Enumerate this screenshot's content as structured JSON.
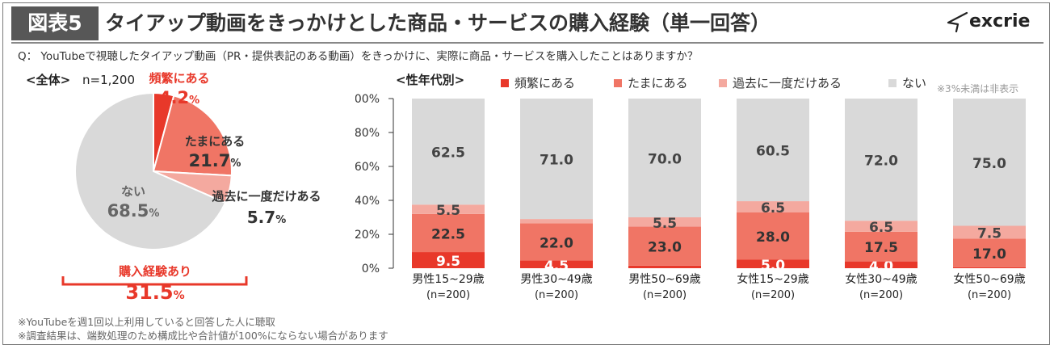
{
  "header": {
    "figure_badge": "図表5",
    "title": "タイアップ動画をきっかけとした商品・サービスの購入経験（単一回答）",
    "logo_text": "excrie"
  },
  "question": "Q： YouTubeで視聴したタイアップ動画（PR・提供表記のある動画）をきっかけに、実際に商品・サービスを購入したことはありますか？",
  "footnotes": [
    "※YouTubeを週1回以上利用していると回答した人に聴取",
    "※調査結果は、端数処理のため構成比や合計値が100%にならない場合があります"
  ],
  "colors": {
    "frequent": "#e8382a",
    "sometimes": "#f07565",
    "once": "#f4a99f",
    "never": "#d9d9d9",
    "accent_red": "#e8382a"
  },
  "chart_data": [
    {
      "type": "pie",
      "section_label": "<全体>",
      "sample_size": "n=1,200",
      "slices": [
        {
          "label": "頻繁にある",
          "value": 4.2
        },
        {
          "label": "たまにある",
          "value": 21.7
        },
        {
          "label": "過去に一度だけある",
          "value": 5.7
        },
        {
          "label": "ない",
          "value": 68.5
        }
      ],
      "unit": "%",
      "bracket_label": "購入経験あり",
      "bracket_value": "31.5",
      "bracket_unit": "%"
    },
    {
      "type": "bar",
      "stacked": true,
      "section_label": "<性年代別>",
      "note": "※3%未満は非表示",
      "categories": [
        "男性15~29歳",
        "男性30~49歳",
        "男性50~69歳",
        "女性15~29歳",
        "女性30~49歳",
        "女性50~69歳"
      ],
      "category_sub": [
        "(n=200)",
        "(n=200)",
        "(n=200)",
        "(n=200)",
        "(n=200)",
        "(n=200)"
      ],
      "yticks": [
        "0%",
        "20%",
        "40%",
        "60%",
        "80%",
        "100%"
      ],
      "ylim": [
        0,
        100
      ],
      "legend_position": "top",
      "series": [
        {
          "name": "頻繁にある",
          "values": [
            9.5,
            4.5,
            1.5,
            5.0,
            4.0,
            0.5
          ]
        },
        {
          "name": "たまにある",
          "values": [
            22.5,
            22.0,
            23.0,
            28.0,
            17.5,
            17.0
          ]
        },
        {
          "name": "過去に一度だけある",
          "values": [
            5.5,
            2.5,
            5.5,
            6.5,
            6.5,
            7.5
          ]
        },
        {
          "name": "ない",
          "values": [
            62.5,
            71.0,
            70.0,
            60.5,
            72.0,
            75.0
          ]
        }
      ]
    }
  ]
}
